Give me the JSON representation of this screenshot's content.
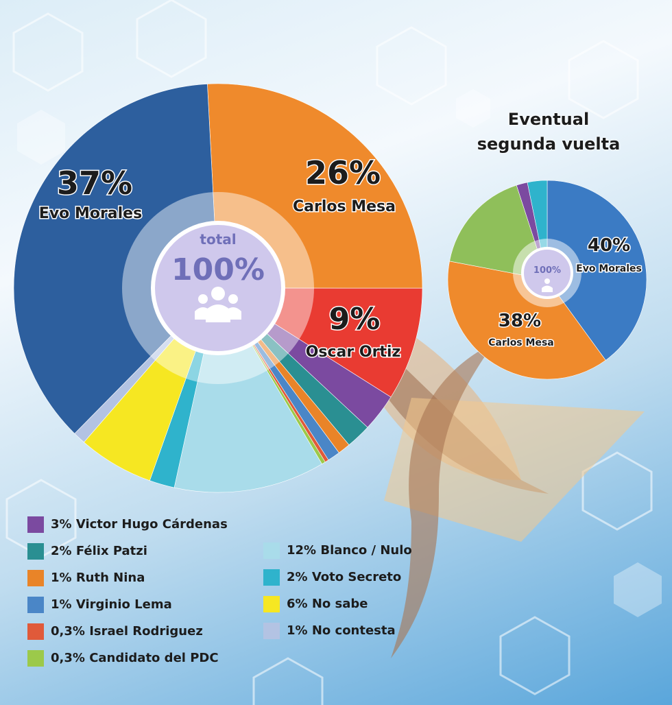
{
  "chart_data": [
    {
      "type": "pie",
      "title": "",
      "center": {
        "line1": "total",
        "line2": "100%"
      },
      "slices": [
        {
          "label": "Carlos Mesa",
          "value": 26,
          "display": "26%",
          "color": "#ef8a2c"
        },
        {
          "label": "Oscar Ortiz",
          "value": 9,
          "display": "9%",
          "color": "#e93b32"
        },
        {
          "label": "Victor Hugo Cárdenas",
          "value": 3,
          "display": "3%",
          "color": "#7b4aa0"
        },
        {
          "label": "Félix Patzi",
          "value": 2,
          "display": "2%",
          "color": "#2a8f92"
        },
        {
          "label": "Ruth Nina",
          "value": 1,
          "display": "1%",
          "color": "#e98428"
        },
        {
          "label": "Virginio Lema",
          "value": 1,
          "display": "1%",
          "color": "#4a86c7"
        },
        {
          "label": "Israel Rodriguez",
          "value": 0.3,
          "display": "0,3%",
          "color": "#e05a3a"
        },
        {
          "label": "Candidato del PDC",
          "value": 0.3,
          "display": "0,3%",
          "color": "#9cc94a"
        },
        {
          "label": "Blanco / Nulo",
          "value": 12,
          "display": "12%",
          "color": "#a9dcea"
        },
        {
          "label": "Voto Secreto",
          "value": 2,
          "display": "2%",
          "color": "#2fb3cc"
        },
        {
          "label": "No sabe",
          "value": 6,
          "display": "6%",
          "color": "#f6e722"
        },
        {
          "label": "No contesta",
          "value": 1,
          "display": "1%",
          "color": "#b3c3e3"
        },
        {
          "label": "Evo Morales",
          "value": 37,
          "display": "37%",
          "color": "#2d5f9e"
        }
      ]
    },
    {
      "type": "pie",
      "title": "Eventual segunda vuelta",
      "center": {
        "line1": "100%"
      },
      "slices": [
        {
          "label": "Evo Morales",
          "value": 40,
          "display": "40%",
          "color": "#3b7bc4"
        },
        {
          "label": "Carlos Mesa",
          "value": 38,
          "display": "38%",
          "color": "#ef8a2c"
        },
        {
          "label": "",
          "value": 17,
          "display": "",
          "color": "#8fbf5a"
        },
        {
          "label": "",
          "value": 1.8,
          "display": "",
          "color": "#7b4aa0"
        },
        {
          "label": "",
          "value": 3.2,
          "display": "",
          "color": "#2fb3cc"
        }
      ]
    }
  ],
  "legend_left": [
    {
      "text": "3% Victor Hugo Cárdenas",
      "color": "#7b4aa0"
    },
    {
      "text": "2% Félix Patzi",
      "color": "#2a8f92"
    },
    {
      "text": "1% Ruth Nina",
      "color": "#e98428"
    },
    {
      "text": "1% Virginio Lema",
      "color": "#4a86c7"
    },
    {
      "text": "0,3% Israel Rodriguez",
      "color": "#e05a3a"
    },
    {
      "text": "0,3% Candidato del PDC",
      "color": "#9cc94a"
    }
  ],
  "legend_right": [
    {
      "text": "12% Blanco / Nulo",
      "color": "#a9dcea"
    },
    {
      "text": "2% Voto Secreto",
      "color": "#2fb3cc"
    },
    {
      "text": "6% No sabe",
      "color": "#f6e722"
    },
    {
      "text": "1% No contesta",
      "color": "#b3c3e3"
    }
  ]
}
